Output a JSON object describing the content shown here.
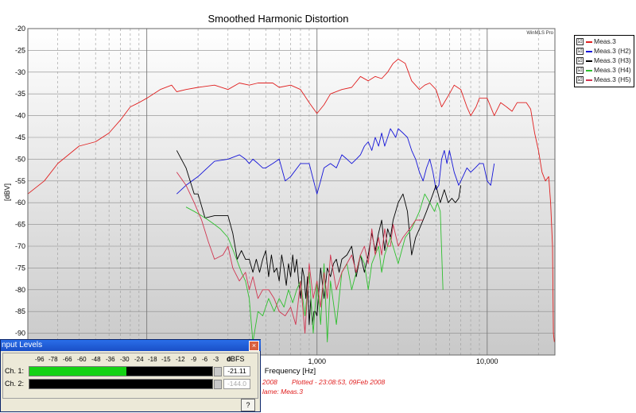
{
  "chart_data": {
    "type": "line",
    "title": "Smoothed Harmonic Distortion",
    "xlabel": "Frequency [Hz]",
    "ylabel": "[dBV]",
    "x_scale": "log",
    "xlim": [
      20,
      25000
    ],
    "ylim": [
      -95,
      -20
    ],
    "yticks": [
      -20,
      -25,
      -30,
      -35,
      -40,
      -45,
      -50,
      -55,
      -60,
      -65,
      -70,
      -75,
      -80,
      -85,
      -90
    ],
    "xtick_labels": [
      {
        "value": 1000,
        "label": "1,000"
      },
      {
        "value": 10000,
        "label": "10,000"
      }
    ],
    "grid": true,
    "watermark": "WinMLS Pro",
    "legend_position": "top-right-outside",
    "series": [
      {
        "name": "Meas.3",
        "color": "#e02020",
        "x": [
          20,
          25,
          30,
          40,
          50,
          60,
          70,
          80,
          90,
          100,
          120,
          140,
          150,
          170,
          200,
          250,
          300,
          350,
          400,
          450,
          500,
          550,
          600,
          700,
          800,
          900,
          1000,
          1100,
          1200,
          1400,
          1600,
          1800,
          2000,
          2200,
          2400,
          2600,
          2800,
          3000,
          3300,
          3600,
          4000,
          4300,
          4600,
          5000,
          5400,
          6000,
          6400,
          7000,
          7600,
          8000,
          8600,
          9000,
          10000,
          11000,
          12000,
          13000,
          14000,
          15000,
          16000,
          17000,
          18000,
          19000,
          20000,
          21000,
          22000,
          23000,
          23600,
          24200,
          24500,
          24800
        ],
        "y": [
          -58,
          -55,
          -51,
          -47,
          -46,
          -44,
          -41,
          -38,
          -37,
          -36,
          -34,
          -33,
          -34.5,
          -34,
          -33.5,
          -33,
          -34,
          -32.5,
          -33,
          -32.5,
          -32.5,
          -32.5,
          -33.5,
          -33,
          -34,
          -37,
          -39.5,
          -37.5,
          -35,
          -34,
          -33.5,
          -31,
          -32,
          -31,
          -31.5,
          -30,
          -28,
          -27,
          -28,
          -32,
          -34,
          -33,
          -32.5,
          -34,
          -38,
          -35,
          -33,
          -34,
          -38,
          -40,
          -38,
          -36,
          -36,
          -40,
          -37,
          -38,
          -39,
          -37,
          -37,
          -37,
          -38.5,
          -44,
          -48,
          -53,
          -55,
          -54,
          -60,
          -70,
          -90,
          -92
        ]
      },
      {
        "name": "Meas.3 (H2)",
        "color": "#1515d8",
        "x": [
          150,
          170,
          200,
          250,
          300,
          350,
          380,
          400,
          420,
          450,
          480,
          500,
          550,
          600,
          650,
          700,
          800,
          900,
          1000,
          1050,
          1100,
          1200,
          1300,
          1400,
          1500,
          1600,
          1700,
          1800,
          1900,
          2000,
          2100,
          2200,
          2300,
          2400,
          2500,
          2600,
          2700,
          2800,
          2900,
          3000,
          3200,
          3400,
          3600,
          3800,
          4000,
          4200,
          4400,
          4600,
          4800,
          5000,
          5200,
          5400,
          5600,
          5800,
          6000,
          6400,
          6800,
          7200,
          7600,
          8000,
          8500,
          9000,
          9500,
          10000,
          10500,
          11000
        ],
        "y": [
          -58,
          -56,
          -54,
          -50.5,
          -50,
          -49,
          -50,
          -51,
          -50,
          -51,
          -52,
          -52,
          -51,
          -50,
          -55,
          -54,
          -51,
          -51,
          -58,
          -55,
          -52,
          -51,
          -52,
          -49,
          -50,
          -51,
          -50,
          -49,
          -47,
          -46,
          -48,
          -45,
          -47,
          -44,
          -47,
          -45,
          -43,
          -44,
          -45,
          -43,
          -44,
          -45,
          -48,
          -50,
          -53,
          -55,
          -52,
          -50,
          -53,
          -57,
          -56,
          -50,
          -48,
          -51,
          -48,
          -53,
          -56,
          -54,
          -52,
          -53,
          -52,
          -51,
          -51,
          -55,
          -56,
          -51
        ]
      },
      {
        "name": "Meas.3 (H3)",
        "color": "#000000",
        "x": [
          150,
          170,
          190,
          200,
          220,
          250,
          280,
          300,
          320,
          340,
          360,
          380,
          400,
          420,
          440,
          460,
          480,
          500,
          520,
          540,
          560,
          580,
          600,
          620,
          640,
          660,
          680,
          700,
          720,
          740,
          760,
          780,
          800,
          820,
          840,
          860,
          880,
          900,
          920,
          940,
          960,
          980,
          1000,
          1050,
          1100,
          1150,
          1200,
          1250,
          1300,
          1350,
          1400,
          1500,
          1600,
          1700,
          1800,
          1900,
          2000,
          2100,
          2200,
          2300,
          2400,
          2500,
          2600,
          2700,
          2800,
          2900,
          3000,
          3200,
          3400,
          3600,
          3800,
          4000,
          4200,
          4400,
          4600,
          4800,
          5000,
          5300,
          5600,
          5900,
          6200,
          6500,
          6800,
          7000
        ],
        "y": [
          -48,
          -52,
          -58,
          -58,
          -63.5,
          -63,
          -63,
          -63,
          -67,
          -73,
          -71,
          -73,
          -73,
          -76,
          -73,
          -76,
          -73,
          -71,
          -77,
          -72,
          -76,
          -75,
          -78,
          -72,
          -75,
          -79,
          -74,
          -77,
          -72,
          -76,
          -73,
          -78,
          -82,
          -75,
          -77,
          -82,
          -77,
          -88,
          -82,
          -88,
          -85,
          -85,
          -86,
          -75,
          -82,
          -75,
          -77,
          -74,
          -73,
          -76,
          -73,
          -72,
          -70,
          -77,
          -72,
          -76,
          -72,
          -67,
          -71,
          -67,
          -64,
          -71,
          -66,
          -68,
          -64,
          -62,
          -60,
          -58,
          -62,
          -72,
          -68,
          -66,
          -64,
          -62,
          -60,
          -58,
          -56,
          -60,
          -57,
          -60,
          -59,
          -60,
          -59,
          -56
        ]
      },
      {
        "name": "Meas.3 (H4)",
        "color": "#2fbf2f",
        "x": [
          170,
          190,
          210,
          230,
          250,
          270,
          300,
          330,
          360,
          380,
          400,
          420,
          450,
          480,
          520,
          560,
          600,
          640,
          680,
          720,
          760,
          800,
          850,
          900,
          950,
          1000,
          1050,
          1100,
          1150,
          1200,
          1300,
          1400,
          1500,
          1600,
          1700,
          1800,
          1900,
          2000,
          2100,
          2200,
          2300,
          2400,
          2500,
          2700,
          3000,
          3300,
          3600,
          4000,
          4300,
          4600,
          4900,
          5100,
          5300,
          5500
        ],
        "y": [
          -61,
          -62,
          -63,
          -64,
          -65,
          -66,
          -68,
          -72,
          -76,
          -78,
          -82,
          -92,
          -85,
          -86,
          -82,
          -85,
          -82,
          -84,
          -80,
          -83,
          -80,
          -78,
          -86,
          -76,
          -90,
          -78,
          -88,
          -74,
          -92,
          -78,
          -88,
          -76,
          -74,
          -80,
          -76,
          -72,
          -74,
          -80,
          -74,
          -72,
          -70,
          -76,
          -72,
          -68,
          -74,
          -68,
          -66,
          -62,
          -58,
          -60,
          -62,
          -60,
          -62,
          -80
        ]
      },
      {
        "name": "Meas.3 (H5)",
        "color": "#d03550",
        "x": [
          150,
          170,
          190,
          210,
          230,
          250,
          280,
          300,
          320,
          350,
          380,
          400,
          420,
          450,
          480,
          520,
          560,
          600,
          650,
          700,
          750,
          800,
          850,
          900,
          950,
          1000,
          1050,
          1100,
          1150,
          1200,
          1300,
          1400,
          1500,
          1600,
          1700,
          1800,
          1900,
          2000,
          2100,
          2200,
          2300,
          2400,
          2500,
          2600,
          2700,
          2800,
          3000,
          3200,
          3500,
          3800,
          4200
        ],
        "y": [
          -53,
          -56,
          -60,
          -64,
          -69,
          -73,
          -72,
          -70,
          -75,
          -78,
          -76,
          -80,
          -77,
          -82,
          -80,
          -80,
          -82,
          -85,
          -86,
          -84,
          -88,
          -78,
          -90,
          -74,
          -82,
          -78,
          -84,
          -76,
          -82,
          -72,
          -80,
          -76,
          -74,
          -72,
          -76,
          -72,
          -70,
          -74,
          -66,
          -72,
          -68,
          -72,
          -66,
          -70,
          -70,
          -65,
          -70,
          -68,
          -66,
          -64,
          -64
        ]
      }
    ]
  },
  "legend": {
    "entries": [
      {
        "label": "Meas.3",
        "checked": "☑"
      },
      {
        "label": "Meas.3 (H2)",
        "checked": "☑"
      },
      {
        "label": "Meas.3 (H3)",
        "checked": "☑"
      },
      {
        "label": "Meas.3 (H4)",
        "checked": "☑"
      },
      {
        "label": "Meas.3 (H5)",
        "checked": "☑"
      }
    ]
  },
  "input_levels": {
    "title": "nput Levels",
    "close": "×",
    "scale": [
      "-96",
      "-78",
      "-66",
      "-60",
      "-48",
      "-36",
      "-30",
      "-24",
      "-18",
      "-15",
      "-12",
      "-9",
      "-6",
      "-3",
      "0"
    ],
    "unit": "dBFS",
    "channels": [
      {
        "label": "Ch. 1:",
        "value": "-21.11",
        "level": 0.53
      },
      {
        "label": "Ch. 2:",
        "value": "-144.0",
        "level": 0
      }
    ],
    "help": "?"
  },
  "status": {
    "year_fragment": "2008",
    "plotted": "Plotted - 23:08:53, 09Feb 2008",
    "name_fragment": "lame: Meas.3"
  }
}
